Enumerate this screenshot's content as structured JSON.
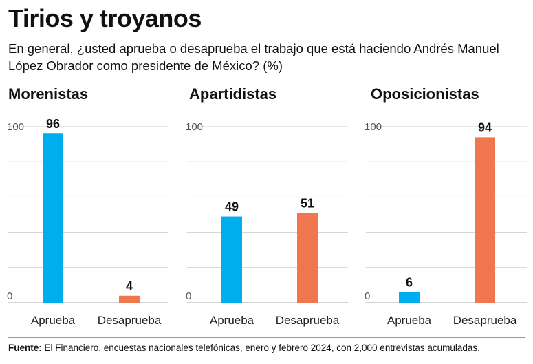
{
  "header": {
    "title": "Tirios y troyanos",
    "subtitle": "En general, ¿usted aprueba o desaprueba el trabajo que está haciendo Andrés Manuel López Obrador como presidente de México?  (%)"
  },
  "footer": {
    "source_label": "Fuente:",
    "source_text": " El Financiero, encuestas nacionales telefónicas, enero y febrero 2024, con 2,000 entrevistas acumuladas."
  },
  "colors": {
    "aprueba": "#00aeef",
    "desaprueba": "#f07650",
    "grid": "#cfcfcf"
  },
  "chart_data": [
    {
      "type": "bar",
      "title": "Morenistas",
      "categories": [
        "Aprueba",
        "Desaprueba"
      ],
      "values": [
        96,
        4
      ],
      "ylim": [
        0,
        100
      ],
      "yticks": [
        "0",
        "100"
      ],
      "grid": true
    },
    {
      "type": "bar",
      "title": "Apartidistas",
      "categories": [
        "Aprueba",
        "Desaprueba"
      ],
      "values": [
        49,
        51
      ],
      "ylim": [
        0,
        100
      ],
      "yticks": [
        "0",
        "100"
      ],
      "grid": true
    },
    {
      "type": "bar",
      "title": "Oposicionistas",
      "categories": [
        "Aprueba",
        "Desaprueba"
      ],
      "values": [
        6,
        94
      ],
      "ylim": [
        0,
        100
      ],
      "yticks": [
        "0",
        "100"
      ],
      "grid": true
    }
  ]
}
